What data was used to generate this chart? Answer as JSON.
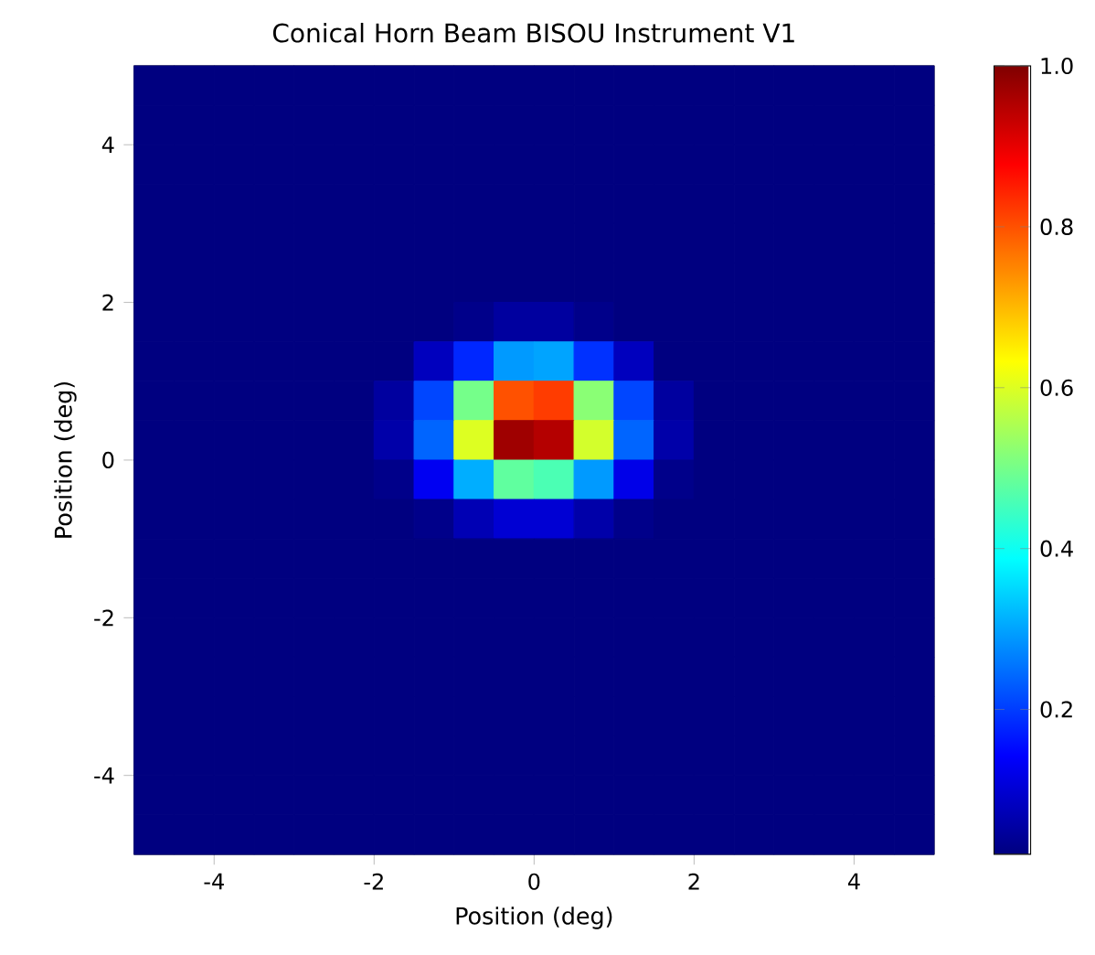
{
  "chart_data": {
    "type": "heatmap",
    "title": "Conical Horn Beam BISOU Instrument V1",
    "xlabel": "Position (deg)",
    "ylabel": "Position (deg)",
    "x": [
      -4.75,
      -4.25,
      -3.75,
      -3.25,
      -2.75,
      -2.25,
      -1.75,
      -1.25,
      -0.75,
      -0.25,
      0.25,
      0.75,
      1.25,
      1.75,
      2.25,
      2.75,
      3.25,
      3.75,
      4.25,
      4.75
    ],
    "y": [
      4.75,
      4.25,
      3.75,
      3.25,
      2.75,
      2.25,
      1.75,
      1.25,
      0.75,
      0.25,
      -0.25,
      -0.75,
      -1.25,
      -1.75,
      -2.25,
      -2.75,
      -3.25,
      -3.75,
      -4.25,
      -4.75
    ],
    "xlim": [
      -5,
      5
    ],
    "ylim": [
      -5,
      5
    ],
    "xticks": [
      -4,
      -2,
      0,
      2,
      4
    ],
    "yticks": [
      -4,
      -2,
      0,
      2,
      4
    ],
    "clim": [
      0.02,
      1.0
    ],
    "cticks": [
      0.2,
      0.4,
      0.6,
      0.8,
      {
        "value": 1.0,
        "label": "1.0"
      }
    ],
    "cells": [
      [
        0.02,
        0.02,
        0.02,
        0.02,
        0.02,
        0.02,
        0.02,
        0.02,
        0.02,
        0.02,
        0.02,
        0.02,
        0.02,
        0.02,
        0.02,
        0.02,
        0.02,
        0.02,
        0.02,
        0.02
      ],
      [
        0.02,
        0.02,
        0.02,
        0.02,
        0.02,
        0.02,
        0.02,
        0.02,
        0.02,
        0.02,
        0.02,
        0.02,
        0.02,
        0.02,
        0.02,
        0.02,
        0.02,
        0.02,
        0.02,
        0.02
      ],
      [
        0.02,
        0.02,
        0.02,
        0.02,
        0.02,
        0.02,
        0.02,
        0.02,
        0.02,
        0.02,
        0.02,
        0.02,
        0.02,
        0.02,
        0.02,
        0.02,
        0.02,
        0.02,
        0.02,
        0.02
      ],
      [
        0.02,
        0.02,
        0.02,
        0.02,
        0.02,
        0.02,
        0.02,
        0.02,
        0.02,
        0.02,
        0.02,
        0.02,
        0.02,
        0.02,
        0.02,
        0.02,
        0.02,
        0.02,
        0.02,
        0.02
      ],
      [
        0.02,
        0.02,
        0.02,
        0.02,
        0.02,
        0.02,
        0.02,
        0.02,
        0.02,
        0.02,
        0.02,
        0.02,
        0.02,
        0.02,
        0.02,
        0.02,
        0.02,
        0.02,
        0.02,
        0.02
      ],
      [
        0.02,
        0.02,
        0.02,
        0.02,
        0.02,
        0.02,
        0.02,
        0.02,
        0.02,
        0.02,
        0.02,
        0.02,
        0.02,
        0.02,
        0.02,
        0.02,
        0.02,
        0.02,
        0.02,
        0.02
      ],
      [
        0.02,
        0.02,
        0.02,
        0.02,
        0.02,
        0.02,
        0.02,
        0.02,
        0.03,
        0.05,
        0.05,
        0.03,
        0.02,
        0.02,
        0.02,
        0.02,
        0.02,
        0.02,
        0.02,
        0.02
      ],
      [
        0.02,
        0.02,
        0.02,
        0.02,
        0.02,
        0.02,
        0.02,
        0.08,
        0.18,
        0.29,
        0.3,
        0.19,
        0.08,
        0.02,
        0.02,
        0.02,
        0.02,
        0.02,
        0.02,
        0.02
      ],
      [
        0.02,
        0.02,
        0.02,
        0.02,
        0.02,
        0.02,
        0.05,
        0.21,
        0.5,
        0.8,
        0.82,
        0.52,
        0.21,
        0.05,
        0.02,
        0.02,
        0.02,
        0.02,
        0.02,
        0.02
      ],
      [
        0.02,
        0.02,
        0.02,
        0.02,
        0.02,
        0.02,
        0.06,
        0.24,
        0.6,
        0.97,
        0.95,
        0.59,
        0.24,
        0.06,
        0.02,
        0.02,
        0.02,
        0.02,
        0.02,
        0.02
      ],
      [
        0.02,
        0.02,
        0.02,
        0.02,
        0.02,
        0.02,
        0.03,
        0.13,
        0.31,
        0.48,
        0.46,
        0.29,
        0.12,
        0.03,
        0.02,
        0.02,
        0.02,
        0.02,
        0.02,
        0.02
      ],
      [
        0.02,
        0.02,
        0.02,
        0.02,
        0.02,
        0.02,
        0.02,
        0.03,
        0.07,
        0.1,
        0.1,
        0.06,
        0.03,
        0.02,
        0.02,
        0.02,
        0.02,
        0.02,
        0.02,
        0.02
      ],
      [
        0.02,
        0.02,
        0.02,
        0.02,
        0.02,
        0.02,
        0.02,
        0.02,
        0.02,
        0.02,
        0.02,
        0.02,
        0.02,
        0.02,
        0.02,
        0.02,
        0.02,
        0.02,
        0.02,
        0.02
      ],
      [
        0.02,
        0.02,
        0.02,
        0.02,
        0.02,
        0.02,
        0.02,
        0.02,
        0.02,
        0.02,
        0.02,
        0.02,
        0.02,
        0.02,
        0.02,
        0.02,
        0.02,
        0.02,
        0.02,
        0.02
      ],
      [
        0.02,
        0.02,
        0.02,
        0.02,
        0.02,
        0.02,
        0.02,
        0.02,
        0.02,
        0.02,
        0.02,
        0.02,
        0.02,
        0.02,
        0.02,
        0.02,
        0.02,
        0.02,
        0.02,
        0.02
      ],
      [
        0.02,
        0.02,
        0.02,
        0.02,
        0.02,
        0.02,
        0.02,
        0.02,
        0.02,
        0.02,
        0.02,
        0.02,
        0.02,
        0.02,
        0.02,
        0.02,
        0.02,
        0.02,
        0.02,
        0.02
      ],
      [
        0.02,
        0.02,
        0.02,
        0.02,
        0.02,
        0.02,
        0.02,
        0.02,
        0.02,
        0.02,
        0.02,
        0.02,
        0.02,
        0.02,
        0.02,
        0.02,
        0.02,
        0.02,
        0.02,
        0.02
      ],
      [
        0.02,
        0.02,
        0.02,
        0.02,
        0.02,
        0.02,
        0.02,
        0.02,
        0.02,
        0.02,
        0.02,
        0.02,
        0.02,
        0.02,
        0.02,
        0.02,
        0.02,
        0.02,
        0.02,
        0.02
      ],
      [
        0.02,
        0.02,
        0.02,
        0.02,
        0.02,
        0.02,
        0.02,
        0.02,
        0.02,
        0.02,
        0.02,
        0.02,
        0.02,
        0.02,
        0.02,
        0.02,
        0.02,
        0.02,
        0.02,
        0.02
      ],
      [
        0.02,
        0.02,
        0.02,
        0.02,
        0.02,
        0.02,
        0.02,
        0.02,
        0.02,
        0.02,
        0.02,
        0.02,
        0.02,
        0.02,
        0.02,
        0.02,
        0.02,
        0.02,
        0.02,
        0.02
      ]
    ]
  }
}
